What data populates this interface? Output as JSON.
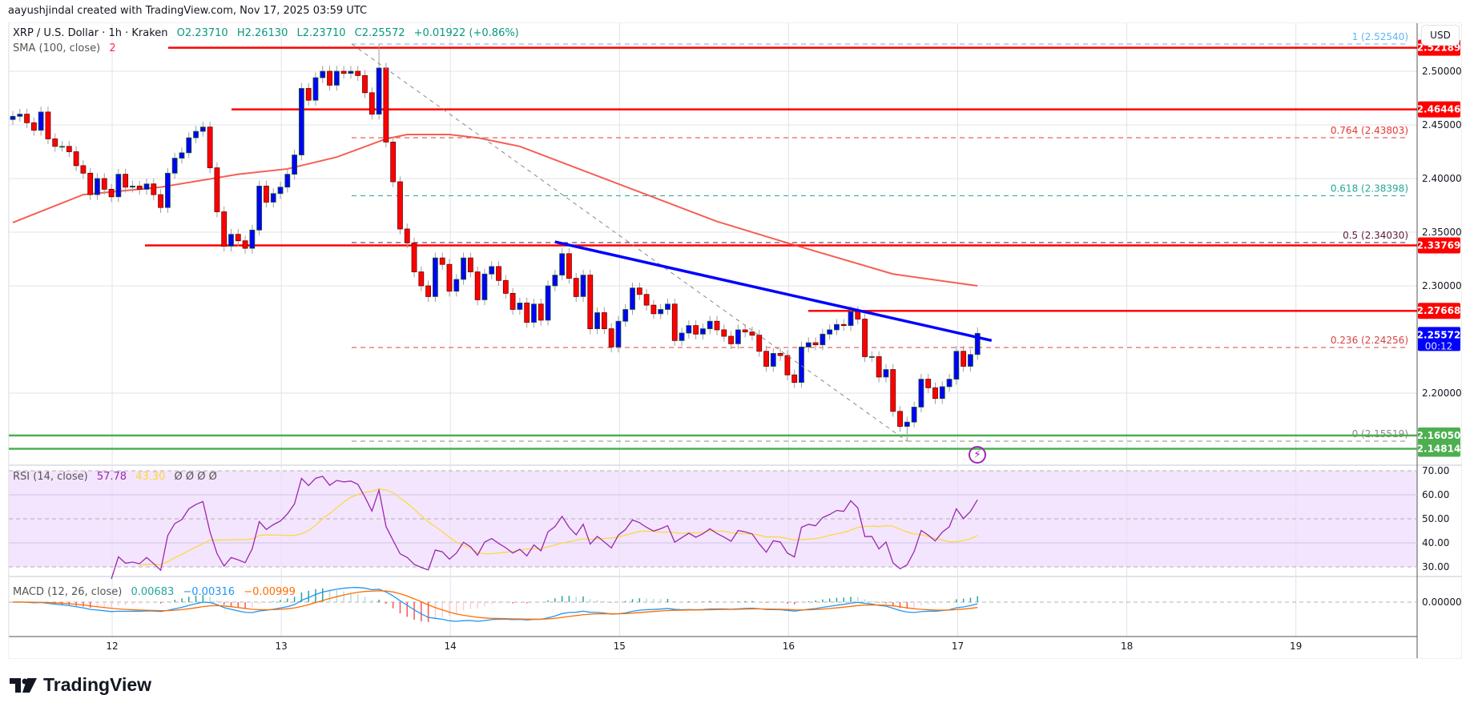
{
  "header": {
    "attribution": "aayushjindal created with TradingView.com, Nov 17, 2025 03:59 UTC"
  },
  "legend": {
    "symbol": "XRP / U.S. Dollar · 1h · Kraken",
    "open": "O2.23710",
    "high": "H2.26130",
    "low": "L2.23710",
    "close": "C2.25572",
    "change": "+0.01922 (+0.86%)",
    "sma_label": "SMA (100, close)",
    "sma_value": "2",
    "rsi_label": "RSI (14, close)",
    "rsi_value": "57.78",
    "rsi_ma_value": "43.30",
    "rsi_extra": "Ø Ø Ø Ø",
    "macd_label": "MACD (12, 26, close)",
    "macd_hist": "0.00683",
    "macd_value": "−0.00316",
    "macd_signal": "−0.00999"
  },
  "axis": {
    "currency": "USD"
  },
  "branding": {
    "logo_text": "TradingView"
  },
  "colors": {
    "up": "#0000ff",
    "down": "#ff0000",
    "sma": "#f44336",
    "trendline": "#0000ff",
    "support": "#4caf50",
    "resistance": "#ff0000",
    "rsi": "#9c27b0",
    "rsi_ma": "#fdd835",
    "macd": "#2196f3",
    "signal": "#ff6d00"
  },
  "chart_data": {
    "type": "candlestick",
    "interval": "1h",
    "x_tick_labels": [
      "12",
      "13",
      "14",
      "15",
      "16",
      "17",
      "18",
      "19"
    ],
    "y_tick_labels": [
      "2.50000",
      "2.45000",
      "2.40000",
      "2.35000",
      "2.30000",
      "2.20000"
    ],
    "y_ticks": [
      2.5,
      2.45,
      2.4,
      2.35,
      2.3,
      2.2
    ],
    "ylim": [
      2.14,
      2.54
    ],
    "first_open": 2.455,
    "closes": [
      2.458,
      2.46,
      2.452,
      2.445,
      2.462,
      2.437,
      2.43,
      2.43,
      2.425,
      2.412,
      2.405,
      2.385,
      2.4,
      2.39,
      2.383,
      2.404,
      2.392,
      2.393,
      2.39,
      2.395,
      2.385,
      2.373,
      2.405,
      2.419,
      2.424,
      2.438,
      2.444,
      2.448,
      2.41,
      2.369,
      2.337,
      2.348,
      2.342,
      2.335,
      2.352,
      2.393,
      2.378,
      2.386,
      2.392,
      2.404,
      2.422,
      2.484,
      2.473,
      2.494,
      2.5,
      2.487,
      2.5,
      2.498,
      2.5,
      2.496,
      2.48,
      2.46,
      2.503,
      2.434,
      2.397,
      2.353,
      2.34,
      2.313,
      2.3,
      2.29,
      2.326,
      2.32,
      2.295,
      2.306,
      2.326,
      2.313,
      2.287,
      2.311,
      2.318,
      2.305,
      2.293,
      2.278,
      2.284,
      2.266,
      2.283,
      2.268,
      2.3,
      2.31,
      2.33,
      2.307,
      2.29,
      2.31,
      2.26,
      2.275,
      2.26,
      2.243,
      2.267,
      2.278,
      2.298,
      2.292,
      2.282,
      2.274,
      2.278,
      2.283,
      2.249,
      2.256,
      2.263,
      2.255,
      2.26,
      2.267,
      2.259,
      2.253,
      2.246,
      2.259,
      2.257,
      2.254,
      2.239,
      2.225,
      2.237,
      2.235,
      2.217,
      2.21,
      2.243,
      2.247,
      2.245,
      2.255,
      2.259,
      2.264,
      2.263,
      2.276,
      2.269,
      2.234,
      2.234,
      2.215,
      2.222,
      2.183,
      2.169,
      2.173,
      2.187,
      2.213,
      2.205,
      2.195,
      2.206,
      2.213,
      2.239,
      2.225,
      2.236,
      2.25572
    ],
    "swing_high": 2.5254,
    "swing_low": 2.15519,
    "sma100": [
      2.359,
      2.385,
      2.392,
      2.404,
      2.409,
      2.42,
      2.437,
      2.441,
      2.441,
      2.438,
      2.43,
      2.415,
      2.385,
      2.36,
      2.34,
      2.311,
      2.3
    ],
    "horizontal_levels": [
      {
        "price": 2.52189,
        "label": "2.52189",
        "kind": "resistance"
      },
      {
        "price": 2.46446,
        "label": "2.46446",
        "kind": "resistance"
      },
      {
        "price": 2.33769,
        "label": "2.33769",
        "kind": "resistance"
      },
      {
        "price": 2.27668,
        "label": "2.27668",
        "kind": "resistance"
      },
      {
        "price": 2.1605,
        "label": "2.16050",
        "kind": "support"
      },
      {
        "price": 2.14814,
        "label": "2.14814",
        "kind": "support"
      }
    ],
    "fibonacci": [
      {
        "ratio": "1",
        "price": 2.5254,
        "label": "1 (2.52540)",
        "color": "#64b5f6"
      },
      {
        "ratio": "0.764",
        "price": 2.43803,
        "label": "0.764 (2.43803)",
        "color": "#e53935"
      },
      {
        "ratio": "0.618",
        "price": 2.38398,
        "label": "0.618 (2.38398)",
        "color": "#26a69a"
      },
      {
        "ratio": "0.5",
        "price": 2.3403,
        "label": "0.5 (2.34030)",
        "color": "#5d1a3a"
      },
      {
        "ratio": "0.236",
        "price": 2.24256,
        "label": "0.236 (2.24256)",
        "color": "#d84343"
      },
      {
        "ratio": "0",
        "price": 2.15519,
        "label": "0 (2.15519)",
        "color": "#888888"
      }
    ],
    "trendline": {
      "from_price": 2.341,
      "to_price": 2.249
    },
    "last_price": {
      "label": "2.25572",
      "countdown": "00:12"
    },
    "rsi": {
      "period": 14,
      "ma_period": 14,
      "y_tick_labels": [
        "70.00",
        "60.00",
        "50.00",
        "40.00",
        "30.00"
      ],
      "y_ticks": [
        70,
        60,
        50,
        40,
        30
      ]
    },
    "macd": {
      "fast": 12,
      "slow": 26,
      "signal": 9,
      "y_tick_labels": [
        "0.00000"
      ]
    }
  }
}
